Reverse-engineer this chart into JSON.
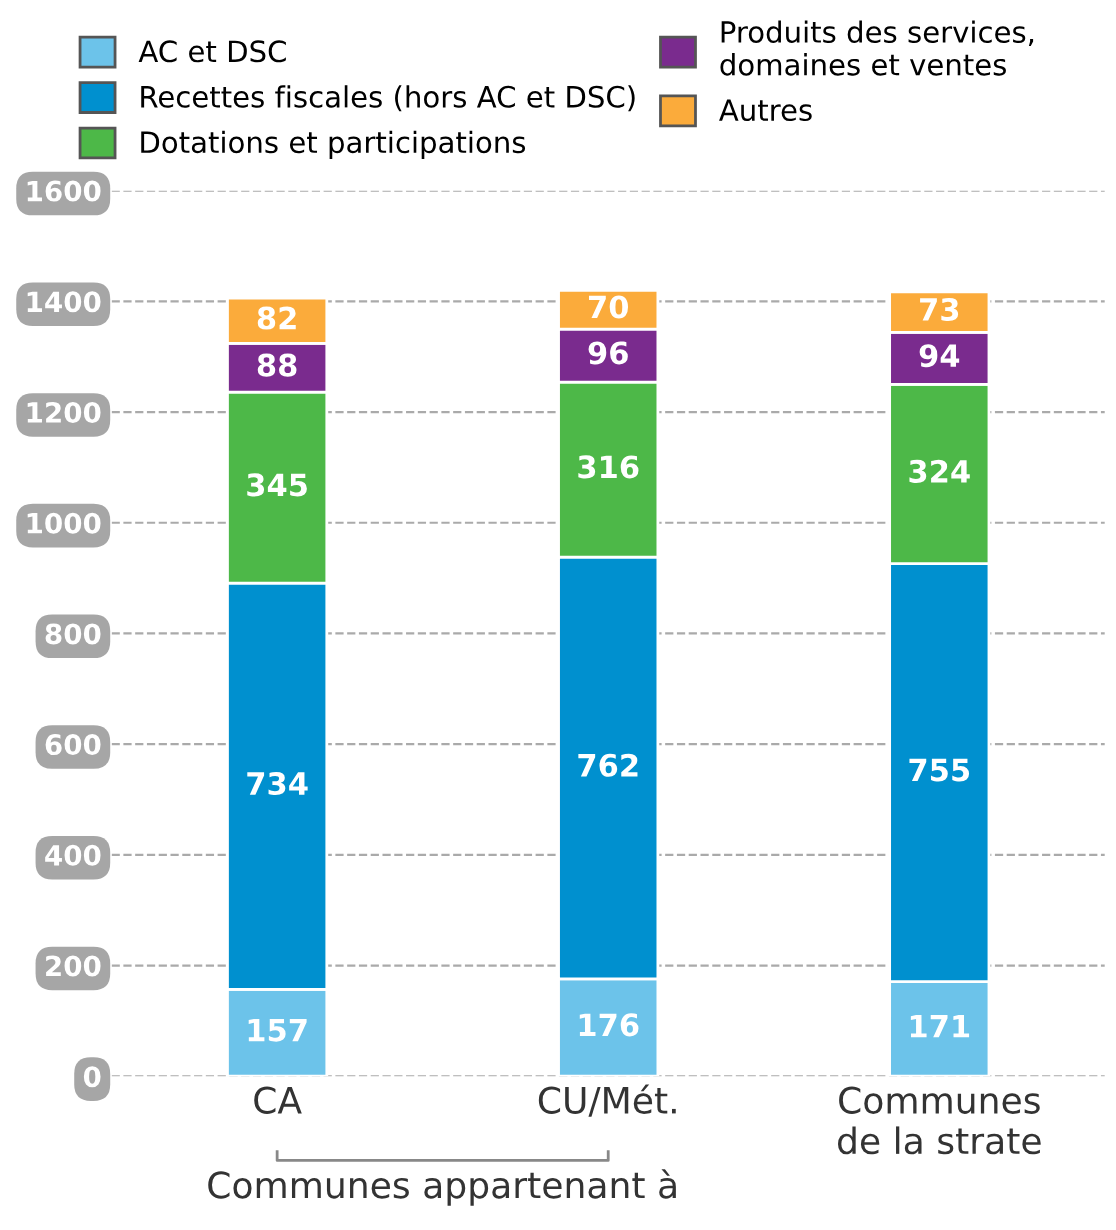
{
  "chart_data": {
    "type": "bar",
    "stacked": true,
    "categories": [
      "CA",
      "CU/Mét.",
      "Communes\nde la strate"
    ],
    "series": [
      {
        "name": "AC et DSC",
        "color": "#6cc3ea",
        "values": [
          157,
          176,
          171
        ]
      },
      {
        "name": "Recettes fiscales (hors AC et DSC)",
        "color": "#0090cf",
        "values": [
          734,
          762,
          755
        ]
      },
      {
        "name": "Dotations et participations",
        "color": "#4db848",
        "values": [
          345,
          316,
          324
        ]
      },
      {
        "name": "Produits des services,\ndomaines et ventes",
        "color": "#7a2b8e",
        "values": [
          88,
          96,
          94
        ]
      },
      {
        "name": "Autres",
        "color": "#fbab3b",
        "values": [
          82,
          70,
          73
        ]
      }
    ],
    "ylim": [
      0,
      1600
    ],
    "yticks": [
      0,
      200,
      400,
      600,
      800,
      1000,
      1200,
      1400,
      1600
    ],
    "grid": "y",
    "legend": "top",
    "data_labels": true,
    "annotations": [
      "Communes appartenant à"
    ]
  }
}
